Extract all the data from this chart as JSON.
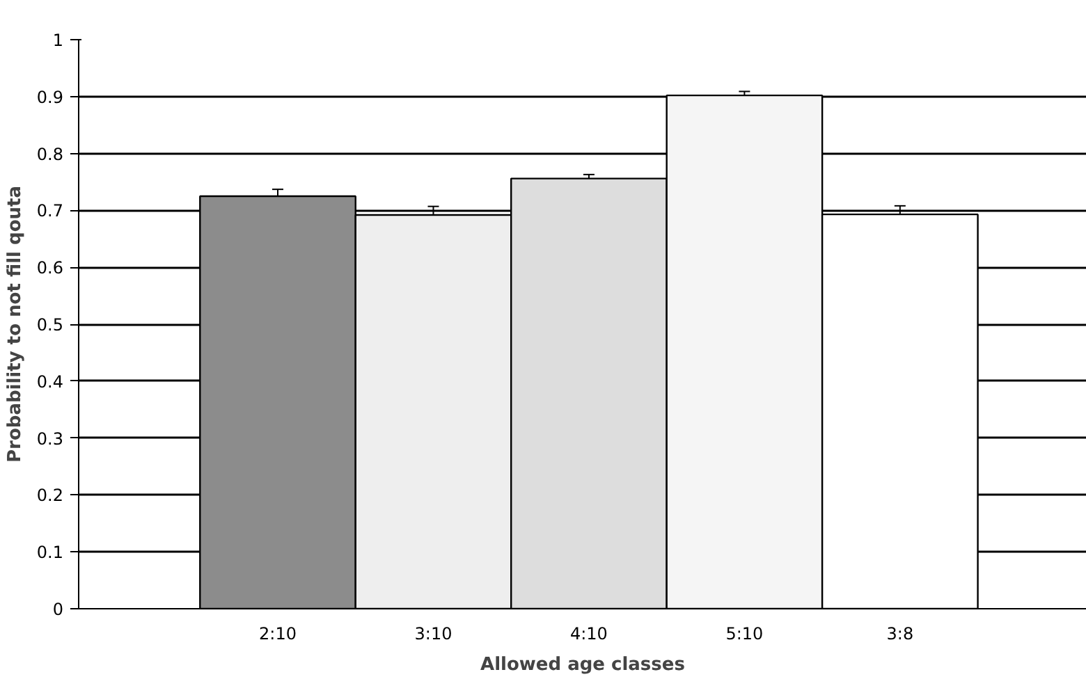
{
  "chart_data": {
    "type": "bar",
    "xlabel": "Allowed age classes",
    "ylabel": "Probability to not fill qouta",
    "categories": [
      "2:10",
      "3:10",
      "4:10",
      "5:10",
      "3:8"
    ],
    "values": [
      0.725,
      0.692,
      0.756,
      0.902,
      0.693
    ],
    "errors": [
      0.012,
      0.015,
      0.007,
      0.007,
      0.015
    ],
    "colors": [
      "#8c8c8c",
      "#eeeeee",
      "#dddddd",
      "#f5f5f5",
      "#ffffff"
    ],
    "ylim": [
      0,
      1
    ],
    "yticks": [
      0,
      0.1,
      0.2,
      0.3,
      0.4,
      0.5,
      0.6,
      0.7,
      0.8,
      0.9,
      1
    ],
    "grid": "y"
  }
}
